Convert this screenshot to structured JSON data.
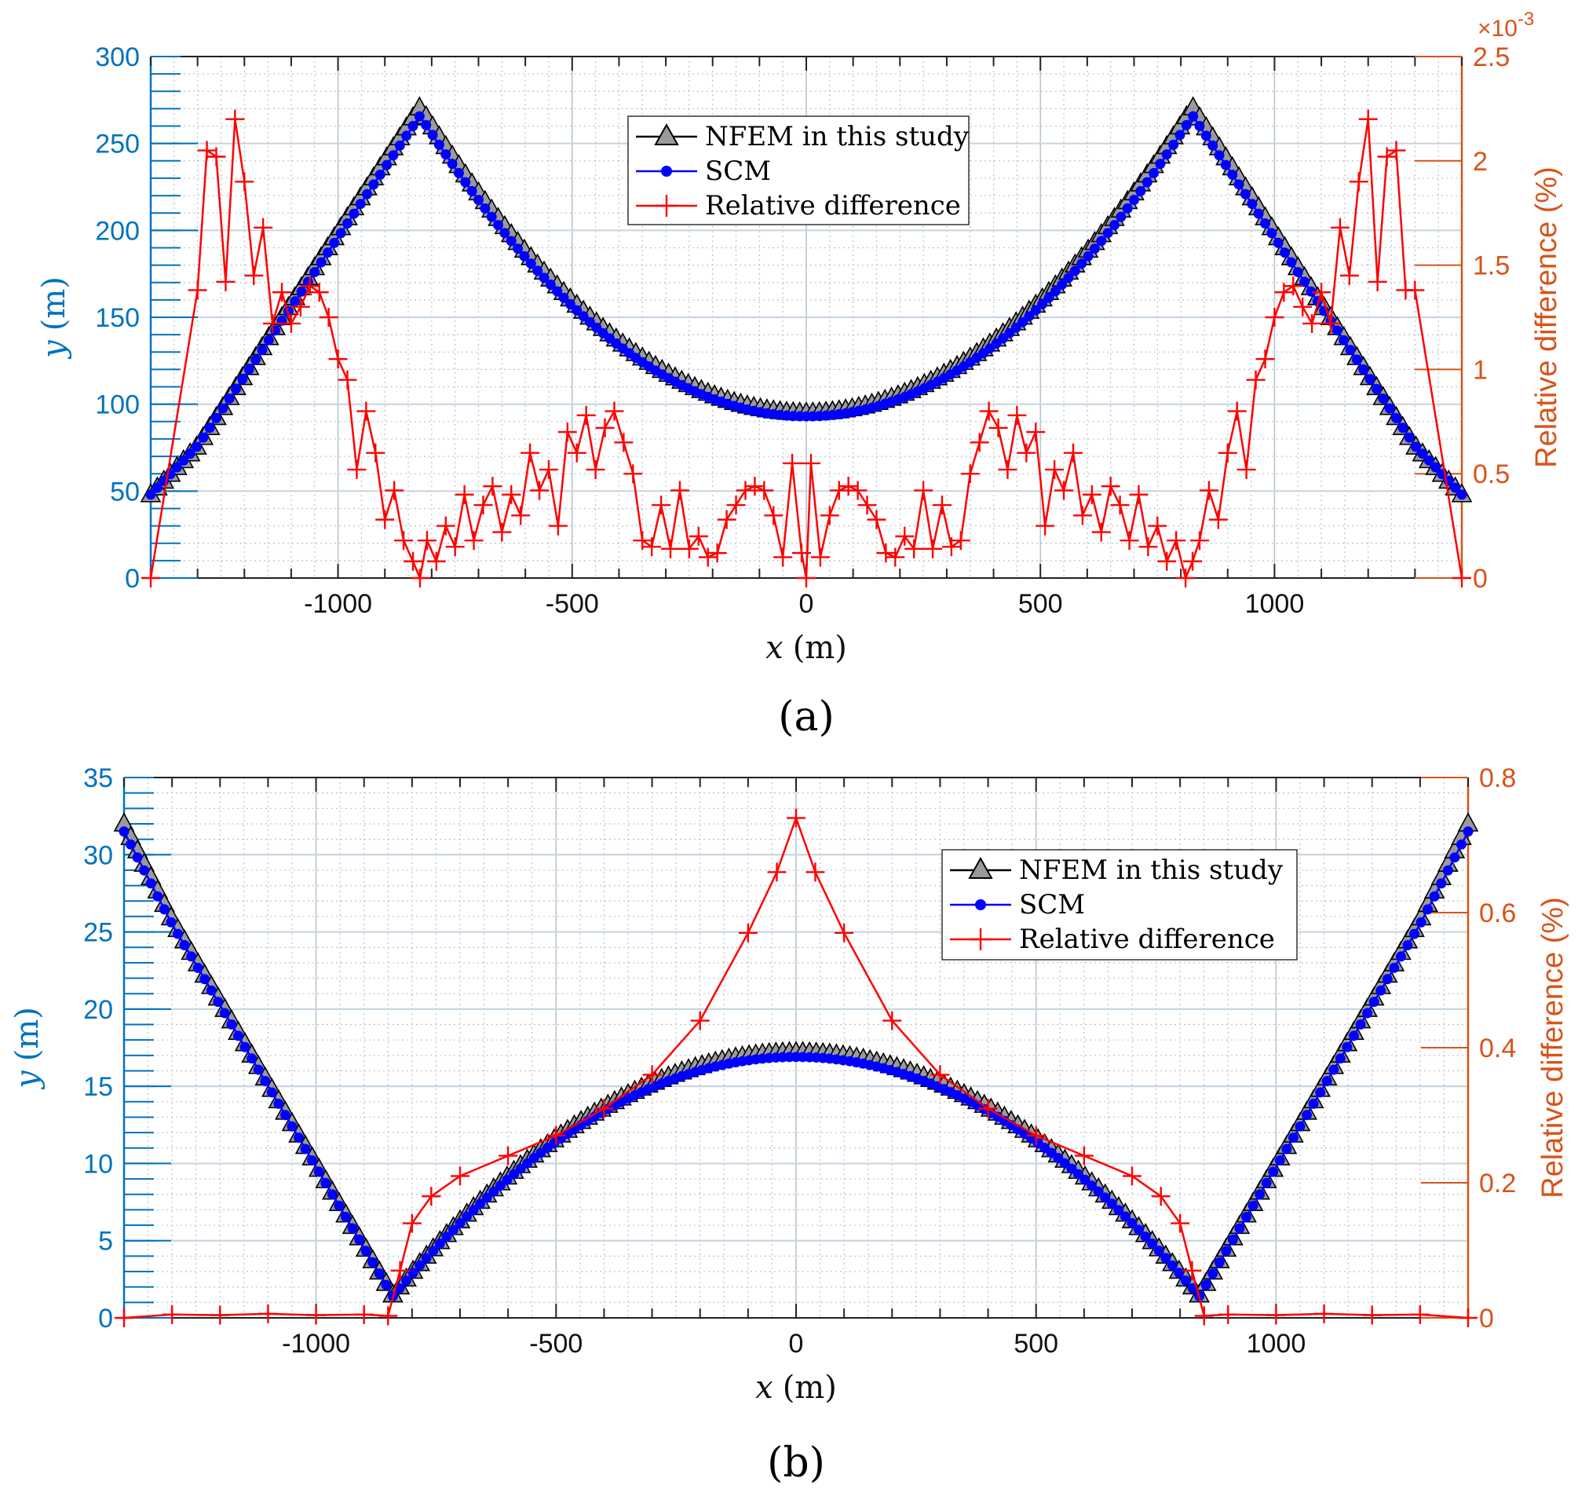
{
  "colors": {
    "left_axis": "#0072BD",
    "right_axis": "#D95319",
    "nfem": "#000000",
    "nfem_fill": "#9a9a9a",
    "scm": "#0000FF",
    "reldiff": "#FF0000",
    "grid": "#b8c4d0"
  },
  "chart_data": [
    {
      "id": "a",
      "type": "line",
      "panel_label": "(a)",
      "xlabel_var": "x",
      "xlabel_unit": "(m)",
      "ylabel_var": "y",
      "ylabel_unit": "(m)",
      "y2label": "Relative difference (%)",
      "y2_exponent_base": "×10",
      "y2_exponent_power": "-3",
      "xlim": [
        -1400,
        1400
      ],
      "ylim": [
        0,
        300
      ],
      "y2lim": [
        0,
        2.5
      ],
      "xticks": [
        -1000,
        -500,
        0,
        500,
        1000
      ],
      "xtick_labels": [
        "-1000",
        "-500",
        "0",
        "500",
        "1000"
      ],
      "yticks": [
        0,
        50,
        100,
        150,
        200,
        250,
        300
      ],
      "ytick_labels": [
        "0",
        "50",
        "100",
        "150",
        "200",
        "250",
        "300"
      ],
      "y2ticks": [
        0,
        0.5,
        1,
        1.5,
        2,
        2.5
      ],
      "y2tick_labels": [
        "0",
        "0.5",
        "1",
        "1.5",
        "2",
        "2.5"
      ],
      "grid": true,
      "legend_position": "top-center",
      "legend": [
        "NFEM in this study",
        "SCM",
        "Relative difference"
      ],
      "series": [
        {
          "name": "NFEM in this study",
          "axis": "left",
          "x_range": [
            -1400,
            1400
          ],
          "count": 201,
          "breakpoints": [
            {
              "x": -1400,
              "y": 48
            },
            {
              "x": -1300,
              "y": 76
            },
            {
              "x": -825,
              "y": 271
            },
            {
              "x": 0,
              "y": 95
            },
            {
              "x": 825,
              "y": 271
            },
            {
              "x": 1300,
              "y": 76
            },
            {
              "x": 1400,
              "y": 48
            }
          ]
        },
        {
          "name": "SCM",
          "axis": "left",
          "x_range": [
            -1400,
            1400
          ],
          "count": 201,
          "breakpoints": [
            {
              "x": -1400,
              "y": 48
            },
            {
              "x": -1300,
              "y": 76
            },
            {
              "x": -825,
              "y": 266
            },
            {
              "x": 0,
              "y": 93
            },
            {
              "x": 825,
              "y": 266
            },
            {
              "x": 1300,
              "y": 76
            },
            {
              "x": 1400,
              "y": 48
            }
          ]
        },
        {
          "name": "Relative difference",
          "axis": "right",
          "points": [
            [
              -1400,
              0
            ],
            [
              -1300,
              1.38
            ],
            [
              -1280,
              2.05
            ],
            [
              -1260,
              2.02
            ],
            [
              -1240,
              1.42
            ],
            [
              -1220,
              2.2
            ],
            [
              -1200,
              1.9
            ],
            [
              -1180,
              1.45
            ],
            [
              -1160,
              1.68
            ],
            [
              -1140,
              1.22
            ],
            [
              -1120,
              1.37
            ],
            [
              -1100,
              1.22
            ],
            [
              -1080,
              1.3
            ],
            [
              -1060,
              1.4
            ],
            [
              -1040,
              1.37
            ],
            [
              -1020,
              1.25
            ],
            [
              -1000,
              1.05
            ],
            [
              -980,
              0.95
            ],
            [
              -960,
              0.52
            ],
            [
              -940,
              0.8
            ],
            [
              -920,
              0.6
            ],
            [
              -900,
              0.28
            ],
            [
              -880,
              0.42
            ],
            [
              -860,
              0.18
            ],
            [
              -840,
              0.08
            ],
            [
              -825,
              0
            ],
            [
              -810,
              0.18
            ],
            [
              -790,
              0.08
            ],
            [
              -770,
              0.25
            ],
            [
              -750,
              0.15
            ],
            [
              -730,
              0.4
            ],
            [
              -710,
              0.18
            ],
            [
              -690,
              0.35
            ],
            [
              -670,
              0.44
            ],
            [
              -650,
              0.22
            ],
            [
              -630,
              0.4
            ],
            [
              -610,
              0.3
            ],
            [
              -590,
              0.6
            ],
            [
              -570,
              0.42
            ],
            [
              -550,
              0.52
            ],
            [
              -530,
              0.25
            ],
            [
              -510,
              0.7
            ],
            [
              -490,
              0.6
            ],
            [
              -470,
              0.78
            ],
            [
              -450,
              0.52
            ],
            [
              -430,
              0.72
            ],
            [
              -410,
              0.8
            ],
            [
              -390,
              0.65
            ],
            [
              -370,
              0.5
            ],
            [
              -350,
              0.18
            ],
            [
              -330,
              0.15
            ],
            [
              -310,
              0.35
            ],
            [
              -290,
              0.14
            ],
            [
              -270,
              0.42
            ],
            [
              -250,
              0.14
            ],
            [
              -230,
              0.2
            ],
            [
              -210,
              0.1
            ],
            [
              -190,
              0.12
            ],
            [
              -170,
              0.28
            ],
            [
              -150,
              0.35
            ],
            [
              -130,
              0.42
            ],
            [
              -110,
              0.44
            ],
            [
              -90,
              0.42
            ],
            [
              -70,
              0.3
            ],
            [
              -50,
              0.1
            ],
            [
              -30,
              0.55
            ],
            [
              -10,
              0.12
            ],
            [
              0,
              0
            ],
            [
              10,
              0.55
            ],
            [
              30,
              0.1
            ],
            [
              50,
              0.3
            ],
            [
              70,
              0.42
            ],
            [
              90,
              0.44
            ],
            [
              110,
              0.42
            ],
            [
              130,
              0.35
            ],
            [
              150,
              0.28
            ],
            [
              170,
              0.12
            ],
            [
              190,
              0.1
            ],
            [
              210,
              0.2
            ],
            [
              230,
              0.14
            ],
            [
              250,
              0.42
            ],
            [
              270,
              0.14
            ],
            [
              290,
              0.35
            ],
            [
              310,
              0.15
            ],
            [
              330,
              0.18
            ],
            [
              350,
              0.5
            ],
            [
              370,
              0.65
            ],
            [
              390,
              0.8
            ],
            [
              410,
              0.72
            ],
            [
              430,
              0.52
            ],
            [
              450,
              0.78
            ],
            [
              470,
              0.6
            ],
            [
              490,
              0.7
            ],
            [
              510,
              0.25
            ],
            [
              530,
              0.52
            ],
            [
              550,
              0.42
            ],
            [
              570,
              0.6
            ],
            [
              590,
              0.3
            ],
            [
              610,
              0.4
            ],
            [
              630,
              0.22
            ],
            [
              650,
              0.44
            ],
            [
              670,
              0.35
            ],
            [
              690,
              0.18
            ],
            [
              710,
              0.4
            ],
            [
              730,
              0.15
            ],
            [
              750,
              0.25
            ],
            [
              770,
              0.08
            ],
            [
              790,
              0.18
            ],
            [
              810,
              0
            ],
            [
              825,
              0.08
            ],
            [
              840,
              0.18
            ],
            [
              860,
              0.42
            ],
            [
              880,
              0.28
            ],
            [
              900,
              0.6
            ],
            [
              920,
              0.8
            ],
            [
              940,
              0.52
            ],
            [
              960,
              0.95
            ],
            [
              980,
              1.05
            ],
            [
              1000,
              1.25
            ],
            [
              1020,
              1.37
            ],
            [
              1040,
              1.4
            ],
            [
              1060,
              1.3
            ],
            [
              1080,
              1.22
            ],
            [
              1100,
              1.37
            ],
            [
              1120,
              1.22
            ],
            [
              1140,
              1.68
            ],
            [
              1160,
              1.45
            ],
            [
              1180,
              1.9
            ],
            [
              1200,
              2.2
            ],
            [
              1220,
              1.42
            ],
            [
              1240,
              2.02
            ],
            [
              1260,
              2.05
            ],
            [
              1280,
              1.38
            ],
            [
              1300,
              1.38
            ],
            [
              1400,
              0
            ]
          ]
        }
      ]
    },
    {
      "id": "b",
      "type": "line",
      "panel_label": "(b)",
      "xlabel_var": "x",
      "xlabel_unit": "(m)",
      "ylabel_var": "y",
      "ylabel_unit": "(m)",
      "y2label": "Relative difference (%)",
      "xlim": [
        -1400,
        1400
      ],
      "ylim": [
        0,
        35
      ],
      "y2lim": [
        0,
        0.8
      ],
      "xticks": [
        -1000,
        -500,
        0,
        500,
        1000
      ],
      "xtick_labels": [
        "-1000",
        "-500",
        "0",
        "500",
        "1000"
      ],
      "yticks": [
        0,
        5,
        10,
        15,
        20,
        25,
        30,
        35
      ],
      "ytick_labels": [
        "0",
        "5",
        "10",
        "15",
        "20",
        "25",
        "30",
        "35"
      ],
      "y2ticks": [
        0,
        0.2,
        0.4,
        0.6,
        0.8
      ],
      "y2tick_labels": [
        "0",
        "0.2",
        "0.4",
        "0.6",
        "0.8"
      ],
      "grid": true,
      "legend_position": "top-right",
      "legend": [
        "NFEM in this study",
        "SCM",
        "Relative difference"
      ],
      "series": [
        {
          "name": "NFEM in this study",
          "axis": "left",
          "x_range": [
            -1400,
            1400
          ],
          "count": 201,
          "breakpoints": [
            {
              "x": -1400,
              "y": 32
            },
            {
              "x": -1300,
              "y": 25.8
            },
            {
              "x": -840,
              "y": 1.5
            },
            {
              "x": 0,
              "y": 17.2
            },
            {
              "x": 840,
              "y": 1.5
            },
            {
              "x": 1300,
              "y": 25.8
            },
            {
              "x": 1400,
              "y": 32
            }
          ]
        },
        {
          "name": "SCM",
          "axis": "left",
          "x_range": [
            -1400,
            1400
          ],
          "count": 201,
          "breakpoints": [
            {
              "x": -1400,
              "y": 31.5
            },
            {
              "x": -1300,
              "y": 25.5
            },
            {
              "x": -840,
              "y": 1.4
            },
            {
              "x": 0,
              "y": 16.9
            },
            {
              "x": 840,
              "y": 1.4
            },
            {
              "x": 1300,
              "y": 25.5
            },
            {
              "x": 1400,
              "y": 31.5
            }
          ]
        },
        {
          "name": "Relative difference",
          "axis": "right",
          "points": [
            [
              -1400,
              0
            ],
            [
              -1300,
              0.005
            ],
            [
              -1200,
              0.004
            ],
            [
              -1100,
              0.006
            ],
            [
              -1000,
              0.004
            ],
            [
              -900,
              0.005
            ],
            [
              -850,
              0.003
            ],
            [
              -825,
              0.07
            ],
            [
              -800,
              0.14
            ],
            [
              -760,
              0.18
            ],
            [
              -700,
              0.21
            ],
            [
              -600,
              0.24
            ],
            [
              -500,
              0.27
            ],
            [
              -400,
              0.31
            ],
            [
              -300,
              0.36
            ],
            [
              -200,
              0.44
            ],
            [
              -100,
              0.57
            ],
            [
              -40,
              0.66
            ],
            [
              0,
              0.74
            ],
            [
              40,
              0.66
            ],
            [
              100,
              0.57
            ],
            [
              200,
              0.44
            ],
            [
              300,
              0.36
            ],
            [
              400,
              0.31
            ],
            [
              500,
              0.27
            ],
            [
              600,
              0.24
            ],
            [
              700,
              0.21
            ],
            [
              760,
              0.18
            ],
            [
              800,
              0.14
            ],
            [
              825,
              0.07
            ],
            [
              850,
              0.003
            ],
            [
              900,
              0.005
            ],
            [
              1000,
              0.004
            ],
            [
              1100,
              0.006
            ],
            [
              1200,
              0.004
            ],
            [
              1300,
              0.005
            ],
            [
              1400,
              0
            ]
          ]
        }
      ]
    }
  ]
}
